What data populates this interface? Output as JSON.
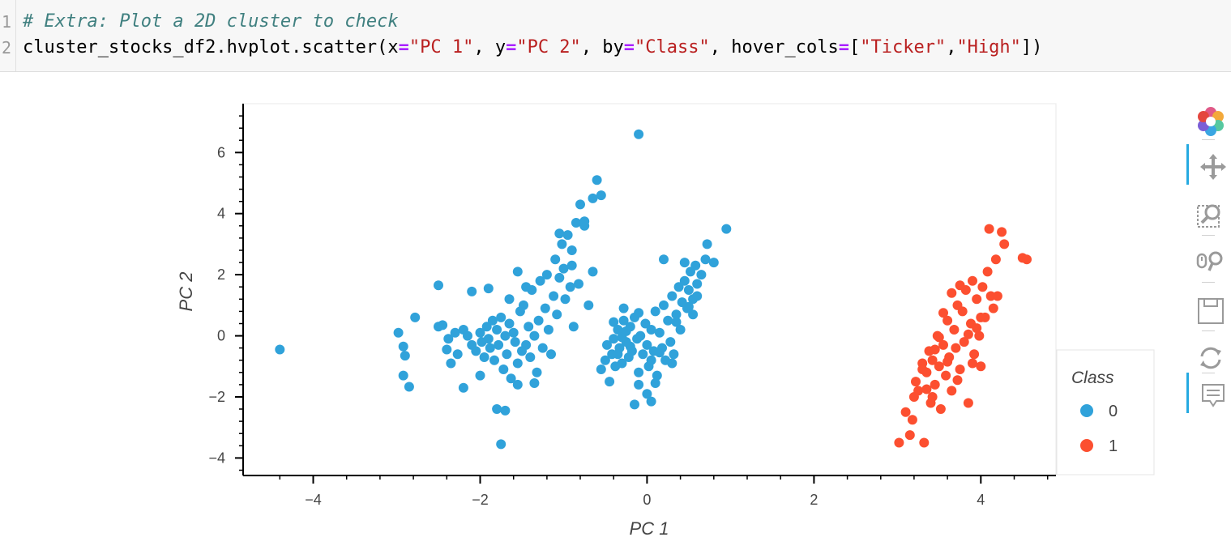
{
  "code": {
    "gutter": [
      "1",
      "2"
    ],
    "line1_comment": "# Extra: Plot a 2D cluster to check",
    "line2": {
      "t1": "cluster_stocks_df2.hvplot.scatter(x",
      "op1": "=",
      "s1": "\"PC 1\"",
      "t2": ", y",
      "op2": "=",
      "s2": "\"PC 2\"",
      "t3": ", by",
      "op3": "=",
      "s3": "\"Class\"",
      "t4": ", hover_cols",
      "op4": "=",
      "t5": "[",
      "s4": "\"Ticker\"",
      "t6": ",",
      "s5": "\"High\"",
      "t7": "])"
    }
  },
  "toolbar": {
    "tools": [
      "bokeh-logo-icon",
      "pan-icon",
      "box-zoom-icon",
      "wheel-zoom-icon",
      "save-icon",
      "reset-icon",
      "hover-icon"
    ]
  },
  "chart_data": {
    "type": "scatter",
    "xlabel": "PC 1",
    "ylabel": "PC 2",
    "xlim": [
      -4.85,
      4.9
    ],
    "ylim": [
      -4.6,
      7.6
    ],
    "x_ticks": [
      -4,
      -2,
      0,
      2,
      4
    ],
    "y_ticks": [
      -4,
      -2,
      0,
      2,
      4,
      6
    ],
    "x_tick_labels": [
      "−4",
      "−2",
      "0",
      "2",
      "4"
    ],
    "y_tick_labels": [
      "−4",
      "−2",
      "0",
      "2",
      "4",
      "6"
    ],
    "legend": {
      "title": "Class",
      "placement": "right"
    },
    "colors": {
      "0": "#30a2da",
      "1": "#fc4f30"
    },
    "series": [
      {
        "name": "0",
        "points": [
          [
            -4.4,
            -0.45
          ],
          [
            -2.98,
            0.1
          ],
          [
            -2.92,
            -0.35
          ],
          [
            -2.9,
            -0.65
          ],
          [
            -2.92,
            -1.3
          ],
          [
            -2.85,
            -1.67
          ],
          [
            -2.78,
            0.6
          ],
          [
            -2.5,
            0.3
          ],
          [
            -2.45,
            0.35
          ],
          [
            -2.4,
            -0.45
          ],
          [
            -2.38,
            -0.1
          ],
          [
            -2.35,
            -0.9
          ],
          [
            -2.3,
            0.1
          ],
          [
            -2.27,
            -0.6
          ],
          [
            -2.2,
            0.2
          ],
          [
            -2.15,
            0.0
          ],
          [
            -2.1,
            -0.3
          ],
          [
            -2.05,
            -0.5
          ],
          [
            -2.0,
            0.1
          ],
          [
            -1.98,
            -0.2
          ],
          [
            -1.95,
            -0.7
          ],
          [
            -1.92,
            0.3
          ],
          [
            -1.9,
            -0.1
          ],
          [
            -1.88,
            -0.4
          ],
          [
            -1.85,
            0.5
          ],
          [
            -1.83,
            -0.8
          ],
          [
            -1.8,
            0.2
          ],
          [
            -1.78,
            -0.3
          ],
          [
            -1.75,
            0.6
          ],
          [
            -1.72,
            -1.1
          ],
          [
            -1.7,
            0.0
          ],
          [
            -1.68,
            -0.6
          ],
          [
            -1.65,
            0.4
          ],
          [
            -1.63,
            -1.4
          ],
          [
            -1.6,
            0.1
          ],
          [
            -1.58,
            -0.2
          ],
          [
            -1.55,
            -0.9
          ],
          [
            -1.52,
            0.8
          ],
          [
            -1.5,
            -0.5
          ],
          [
            -1.48,
            1.0
          ],
          [
            -1.45,
            -0.3
          ],
          [
            -1.42,
            0.3
          ],
          [
            -1.4,
            -0.7
          ],
          [
            -1.38,
            1.5
          ],
          [
            -1.35,
            0.0
          ],
          [
            -1.32,
            -1.2
          ],
          [
            -1.3,
            0.5
          ],
          [
            -1.28,
            1.8
          ],
          [
            -1.25,
            -0.4
          ],
          [
            -1.22,
            0.9
          ],
          [
            -1.2,
            2.0
          ],
          [
            -1.18,
            0.2
          ],
          [
            -1.15,
            -0.6
          ],
          [
            -1.12,
            1.3
          ],
          [
            -1.1,
            2.5
          ],
          [
            -1.08,
            0.7
          ],
          [
            -1.05,
            1.9
          ],
          [
            -1.02,
            3.0
          ],
          [
            -1.0,
            2.2
          ],
          [
            -0.98,
            1.2
          ],
          [
            -0.95,
            3.3
          ],
          [
            -0.92,
            1.6
          ],
          [
            -0.9,
            2.3
          ],
          [
            -0.88,
            0.3
          ],
          [
            -0.85,
            3.7
          ],
          [
            -0.82,
            1.7
          ],
          [
            -0.8,
            4.3
          ],
          [
            -0.75,
            3.6
          ],
          [
            -0.7,
            1.0
          ],
          [
            -0.65,
            4.5
          ],
          [
            -0.6,
            5.1
          ],
          [
            -0.55,
            4.6
          ],
          [
            -1.9,
            1.55
          ],
          [
            -2.1,
            1.45
          ],
          [
            -2.5,
            1.65
          ],
          [
            -1.7,
            -2.45
          ],
          [
            -1.75,
            -3.55
          ],
          [
            -1.8,
            -2.4
          ],
          [
            -2.0,
            -1.3
          ],
          [
            -1.55,
            -1.6
          ],
          [
            -1.35,
            -1.55
          ],
          [
            -2.2,
            -1.7
          ],
          [
            -1.65,
            1.2
          ],
          [
            -1.45,
            1.6
          ],
          [
            -1.55,
            2.1
          ],
          [
            -0.75,
            3.75
          ],
          [
            -1.05,
            3.35
          ],
          [
            -0.65,
            2.1
          ],
          [
            -0.9,
            2.8
          ],
          [
            -0.1,
            6.6
          ],
          [
            -0.55,
            -1.1
          ],
          [
            -0.5,
            -0.8
          ],
          [
            -0.48,
            -0.3
          ],
          [
            -0.45,
            -1.5
          ],
          [
            -0.42,
            -0.6
          ],
          [
            -0.4,
            -0.1
          ],
          [
            -0.38,
            -1.0
          ],
          [
            -0.35,
            0.2
          ],
          [
            -0.33,
            -0.4
          ],
          [
            -0.3,
            -0.9
          ],
          [
            -0.28,
            0.5
          ],
          [
            -0.25,
            -0.2
          ],
          [
            -0.22,
            -0.7
          ],
          [
            -0.2,
            0.3
          ],
          [
            -0.18,
            -0.5
          ],
          [
            -0.15,
            0.6
          ],
          [
            -0.12,
            -0.1
          ],
          [
            -0.1,
            -1.2
          ],
          [
            -0.08,
            0.0
          ],
          [
            -0.05,
            -0.6
          ],
          [
            -0.02,
            0.4
          ],
          [
            0.0,
            -0.3
          ],
          [
            0.02,
            -1.0
          ],
          [
            0.05,
            0.2
          ],
          [
            0.08,
            -0.5
          ],
          [
            0.1,
            0.8
          ],
          [
            0.12,
            -1.3
          ],
          [
            0.15,
            0.1
          ],
          [
            0.18,
            -0.4
          ],
          [
            0.2,
            1.0
          ],
          [
            0.22,
            -0.8
          ],
          [
            0.25,
            0.5
          ],
          [
            0.28,
            -0.2
          ],
          [
            0.3,
            1.3
          ],
          [
            0.32,
            -0.6
          ],
          [
            0.35,
            0.7
          ],
          [
            0.38,
            1.6
          ],
          [
            0.4,
            0.2
          ],
          [
            0.42,
            1.1
          ],
          [
            0.45,
            1.8
          ],
          [
            0.48,
            0.9
          ],
          [
            0.5,
            1.5
          ],
          [
            0.52,
            2.1
          ],
          [
            0.55,
            1.2
          ],
          [
            0.58,
            2.3
          ],
          [
            0.6,
            1.7
          ],
          [
            0.65,
            2.0
          ],
          [
            0.7,
            2.5
          ],
          [
            0.72,
            3.0
          ],
          [
            0.8,
            2.4
          ],
          [
            0.95,
            3.5
          ],
          [
            -0.15,
            -2.25
          ],
          [
            0.0,
            -1.9
          ],
          [
            0.05,
            -2.15
          ],
          [
            -0.1,
            -1.6
          ],
          [
            0.2,
            2.5
          ],
          [
            0.45,
            2.4
          ],
          [
            -0.3,
            -0.05
          ],
          [
            -0.25,
            0.15
          ],
          [
            -0.35,
            -0.6
          ],
          [
            -0.2,
            -0.35
          ],
          [
            -0.4,
            0.45
          ],
          [
            -0.28,
            0.9
          ],
          [
            -0.1,
            0.75
          ],
          [
            0.05,
            -0.8
          ],
          [
            0.1,
            -1.55
          ],
          [
            0.15,
            -0.55
          ],
          [
            0.3,
            -0.9
          ],
          [
            0.35,
            0.45
          ],
          [
            0.5,
            0.95
          ],
          [
            0.6,
            1.3
          ],
          [
            0.55,
            0.7
          ]
        ]
      },
      {
        "name": "1",
        "points": [
          [
            3.02,
            -3.5
          ],
          [
            3.1,
            -2.5
          ],
          [
            3.15,
            -3.25
          ],
          [
            3.18,
            -2.75
          ],
          [
            3.2,
            -2.0
          ],
          [
            3.22,
            -1.5
          ],
          [
            3.25,
            -1.8
          ],
          [
            3.3,
            -0.9
          ],
          [
            3.32,
            -3.5
          ],
          [
            3.35,
            -1.2
          ],
          [
            3.38,
            -0.5
          ],
          [
            3.4,
            -2.2
          ],
          [
            3.42,
            -0.8
          ],
          [
            3.45,
            -1.6
          ],
          [
            3.48,
            0.0
          ],
          [
            3.5,
            -1.0
          ],
          [
            3.52,
            -2.4
          ],
          [
            3.55,
            -0.3
          ],
          [
            3.58,
            -1.3
          ],
          [
            3.6,
            0.5
          ],
          [
            3.62,
            -0.7
          ],
          [
            3.65,
            -1.8
          ],
          [
            3.68,
            0.2
          ],
          [
            3.7,
            -0.4
          ],
          [
            3.72,
            1.0
          ],
          [
            3.75,
            -1.1
          ],
          [
            3.78,
            0.8
          ],
          [
            3.8,
            -0.2
          ],
          [
            3.82,
            1.5
          ],
          [
            3.85,
            -2.2
          ],
          [
            3.88,
            0.4
          ],
          [
            3.9,
            1.8
          ],
          [
            3.92,
            -0.6
          ],
          [
            3.95,
            1.2
          ],
          [
            3.98,
            0.0
          ],
          [
            4.0,
            -1.0
          ],
          [
            4.02,
            1.6
          ],
          [
            4.05,
            0.6
          ],
          [
            4.08,
            2.1
          ],
          [
            4.1,
            3.5
          ],
          [
            4.12,
            1.3
          ],
          [
            4.15,
            0.9
          ],
          [
            4.18,
            2.5
          ],
          [
            4.2,
            1.3
          ],
          [
            4.25,
            3.4
          ],
          [
            4.28,
            3.0
          ],
          [
            4.5,
            2.55
          ],
          [
            4.55,
            2.5
          ],
          [
            3.45,
            -0.45
          ],
          [
            3.6,
            -0.85
          ],
          [
            3.72,
            -1.45
          ],
          [
            3.85,
            0.05
          ],
          [
            3.95,
            0.25
          ],
          [
            3.55,
            0.75
          ],
          [
            3.35,
            -1.75
          ],
          [
            3.65,
            1.4
          ],
          [
            3.75,
            1.65
          ],
          [
            3.9,
            -0.9
          ],
          [
            4.0,
            0.6
          ],
          [
            3.5,
            -0.05
          ],
          [
            3.3,
            -1.1
          ],
          [
            3.42,
            -2.0
          ]
        ]
      }
    ]
  }
}
